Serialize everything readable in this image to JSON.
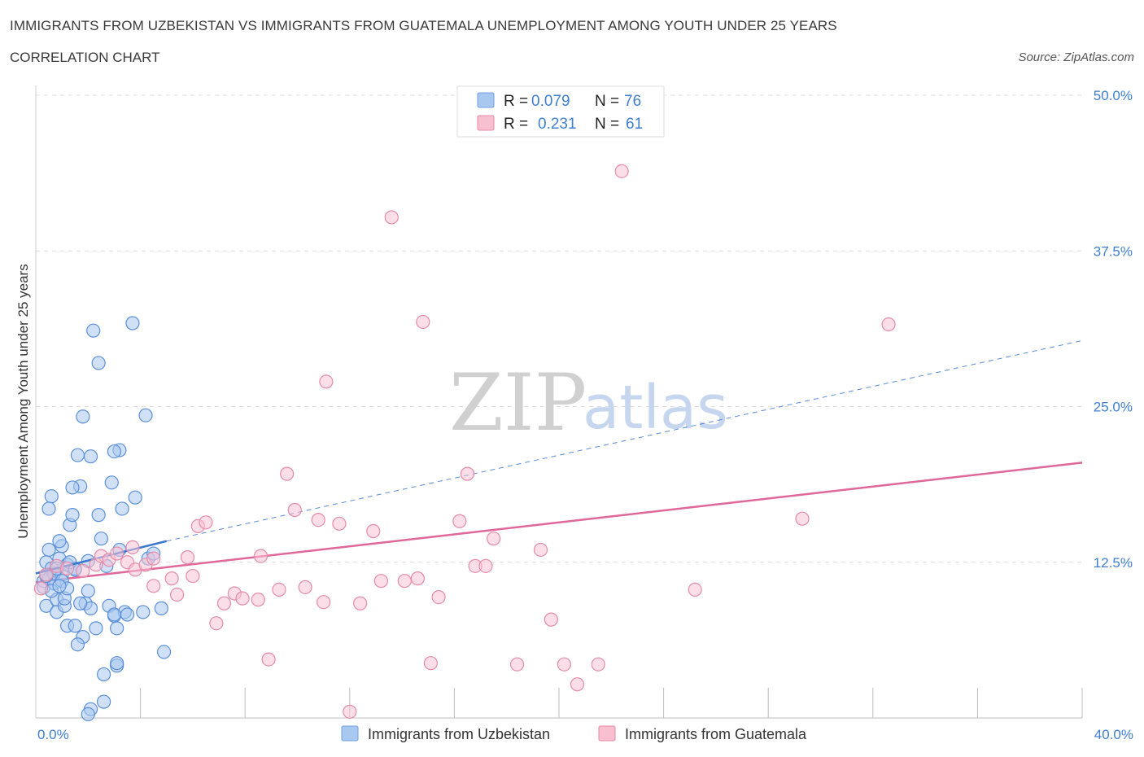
{
  "header": {
    "title": "IMMIGRANTS FROM UZBEKISTAN VS IMMIGRANTS FROM GUATEMALA UNEMPLOYMENT AMONG YOUTH UNDER 25 YEARS",
    "subtitle": "CORRELATION CHART",
    "source": "Source: ZipAtlas.com"
  },
  "watermark": {
    "zip": "ZIP",
    "atlas": "atlas"
  },
  "legend": {
    "rows": [
      {
        "r_label": "R =",
        "r_value": "0.079",
        "n_label": "N =",
        "n_value": "76",
        "color": "#a9c8f0",
        "stroke": "#6f9fe0"
      },
      {
        "r_label": "R =",
        "r_value": "0.231",
        "n_label": "N =",
        "n_value": "61",
        "color": "#f7bfd0",
        "stroke": "#e98aa8"
      }
    ]
  },
  "colors": {
    "blue_fill": "#a9c8f0",
    "blue_stroke": "#5b8fd8",
    "blue_line": "#3b78d0",
    "pink_fill": "#f7c3d3",
    "pink_stroke": "#e58ba9",
    "pink_line": "#e0679a",
    "grid": "#dcdcdc",
    "axis_text": "#3f7fd1"
  },
  "chart_data": {
    "type": "scatter",
    "title": "IMMIGRANTS FROM UZBEKISTAN VS IMMIGRANTS FROM GUATEMALA UNEMPLOYMENT AMONG YOUTH UNDER 25 YEARS",
    "xlabel": "",
    "ylabel": "Unemployment Among Youth under 25 years",
    "xlim": [
      0,
      40
    ],
    "ylim": [
      0,
      50
    ],
    "x_tick_labels": [
      "0.0%",
      "40.0%"
    ],
    "y_ticks": [
      {
        "value": 12.5,
        "label": "12.5%"
      },
      {
        "value": 25.0,
        "label": "25.0%"
      },
      {
        "value": 37.5,
        "label": "37.5%"
      },
      {
        "value": 50.0,
        "label": "50.0%"
      }
    ],
    "series": [
      {
        "name": "Immigrants from Uzbekistan",
        "r": 0.079,
        "n": 76,
        "trend": {
          "x0": 0,
          "y0": 11.6,
          "x1": 5,
          "y1": 14.2,
          "dash_to_x": 40,
          "dash_to_y": 30.3
        },
        "points": [
          [
            0.3,
            11.0
          ],
          [
            0.3,
            10.5
          ],
          [
            0.4,
            12.5
          ],
          [
            0.5,
            13.5
          ],
          [
            0.4,
            9.0
          ],
          [
            0.5,
            11.2
          ],
          [
            0.6,
            12.0
          ],
          [
            0.7,
            10.8
          ],
          [
            0.8,
            9.5
          ],
          [
            0.6,
            17.8
          ],
          [
            0.5,
            16.8
          ],
          [
            0.9,
            12.8
          ],
          [
            1.0,
            13.8
          ],
          [
            1.0,
            11.5
          ],
          [
            0.8,
            8.5
          ],
          [
            1.1,
            9.0
          ],
          [
            1.2,
            7.4
          ],
          [
            0.9,
            14.2
          ],
          [
            1.3,
            15.5
          ],
          [
            1.4,
            16.3
          ],
          [
            1.2,
            12.3
          ],
          [
            1.5,
            12.0
          ],
          [
            1.6,
            21.1
          ],
          [
            1.7,
            18.6
          ],
          [
            1.4,
            18.5
          ],
          [
            1.8,
            6.5
          ],
          [
            1.9,
            9.2
          ],
          [
            2.0,
            10.2
          ],
          [
            2.1,
            8.8
          ],
          [
            1.5,
            7.4
          ],
          [
            1.8,
            24.2
          ],
          [
            2.1,
            21.0
          ],
          [
            1.6,
            5.9
          ],
          [
            2.3,
            7.2
          ],
          [
            2.4,
            16.3
          ],
          [
            2.5,
            14.4
          ],
          [
            2.6,
            3.5
          ],
          [
            2.6,
            1.3
          ],
          [
            2.8,
            9.0
          ],
          [
            3.0,
            8.2
          ],
          [
            3.1,
            7.2
          ],
          [
            3.2,
            13.5
          ],
          [
            3.3,
            16.8
          ],
          [
            3.4,
            8.5
          ],
          [
            3.5,
            8.3
          ],
          [
            3.2,
            21.5
          ],
          [
            3.0,
            21.4
          ],
          [
            2.2,
            31.1
          ],
          [
            2.4,
            28.5
          ],
          [
            3.1,
            4.2
          ],
          [
            3.1,
            4.4
          ],
          [
            2.1,
            0.7
          ],
          [
            2.0,
            0.3
          ],
          [
            3.7,
            31.7
          ],
          [
            3.8,
            17.7
          ],
          [
            3.0,
            8.3
          ],
          [
            2.9,
            18.9
          ],
          [
            4.2,
            24.3
          ],
          [
            4.3,
            12.8
          ],
          [
            4.8,
            8.8
          ],
          [
            4.9,
            5.3
          ],
          [
            4.1,
            8.5
          ],
          [
            1.7,
            9.2
          ],
          [
            0.6,
            10.2
          ],
          [
            0.7,
            11.6
          ],
          [
            0.8,
            12.0
          ],
          [
            1.0,
            11.0
          ],
          [
            1.1,
            9.6
          ],
          [
            1.3,
            12.5
          ],
          [
            1.2,
            10.4
          ],
          [
            0.4,
            11.4
          ],
          [
            0.9,
            10.6
          ],
          [
            1.5,
            11.9
          ],
          [
            2.0,
            12.6
          ],
          [
            4.5,
            13.2
          ],
          [
            2.7,
            12.2
          ]
        ]
      },
      {
        "name": "Immigrants from Guatemala",
        "r": 0.231,
        "n": 61,
        "trend": {
          "x0": 0,
          "y0": 10.9,
          "x1": 40,
          "y1": 20.5
        },
        "points": [
          [
            0.4,
            11.5
          ],
          [
            0.8,
            12.2
          ],
          [
            1.2,
            12.0
          ],
          [
            1.8,
            11.8
          ],
          [
            2.3,
            12.3
          ],
          [
            2.5,
            13.0
          ],
          [
            2.8,
            12.7
          ],
          [
            3.1,
            13.2
          ],
          [
            3.7,
            13.7
          ],
          [
            3.5,
            12.5
          ],
          [
            3.8,
            11.9
          ],
          [
            4.2,
            12.3
          ],
          [
            4.5,
            12.8
          ],
          [
            4.5,
            10.6
          ],
          [
            5.2,
            11.2
          ],
          [
            5.4,
            9.9
          ],
          [
            5.8,
            12.9
          ],
          [
            6.0,
            11.4
          ],
          [
            6.2,
            15.4
          ],
          [
            6.5,
            15.7
          ],
          [
            6.9,
            7.6
          ],
          [
            7.2,
            9.2
          ],
          [
            7.6,
            10.0
          ],
          [
            7.9,
            9.6
          ],
          [
            8.5,
            9.5
          ],
          [
            8.6,
            13.0
          ],
          [
            8.9,
            4.7
          ],
          [
            9.3,
            10.3
          ],
          [
            9.6,
            19.6
          ],
          [
            9.9,
            16.7
          ],
          [
            10.3,
            10.5
          ],
          [
            10.8,
            15.9
          ],
          [
            11.0,
            9.3
          ],
          [
            11.1,
            27.0
          ],
          [
            11.6,
            15.6
          ],
          [
            12.4,
            9.2
          ],
          [
            12.9,
            15.0
          ],
          [
            13.2,
            11.0
          ],
          [
            13.6,
            40.2
          ],
          [
            14.1,
            11.0
          ],
          [
            14.6,
            11.2
          ],
          [
            14.8,
            31.8
          ],
          [
            15.1,
            4.4
          ],
          [
            15.4,
            9.7
          ],
          [
            16.2,
            15.8
          ],
          [
            16.5,
            19.6
          ],
          [
            16.8,
            12.2
          ],
          [
            17.2,
            12.2
          ],
          [
            17.5,
            14.4
          ],
          [
            18.4,
            4.3
          ],
          [
            19.3,
            13.5
          ],
          [
            19.7,
            7.9
          ],
          [
            20.2,
            4.3
          ],
          [
            20.7,
            2.7
          ],
          [
            21.5,
            4.3
          ],
          [
            22.4,
            43.9
          ],
          [
            25.2,
            10.3
          ],
          [
            29.3,
            16.0
          ],
          [
            32.6,
            31.6
          ],
          [
            0.2,
            10.4
          ],
          [
            12.0,
            0.5
          ]
        ]
      }
    ]
  },
  "bottom_legend": {
    "items": [
      {
        "label": "Immigrants from Uzbekistan"
      },
      {
        "label": "Immigrants from Guatemala"
      }
    ]
  }
}
